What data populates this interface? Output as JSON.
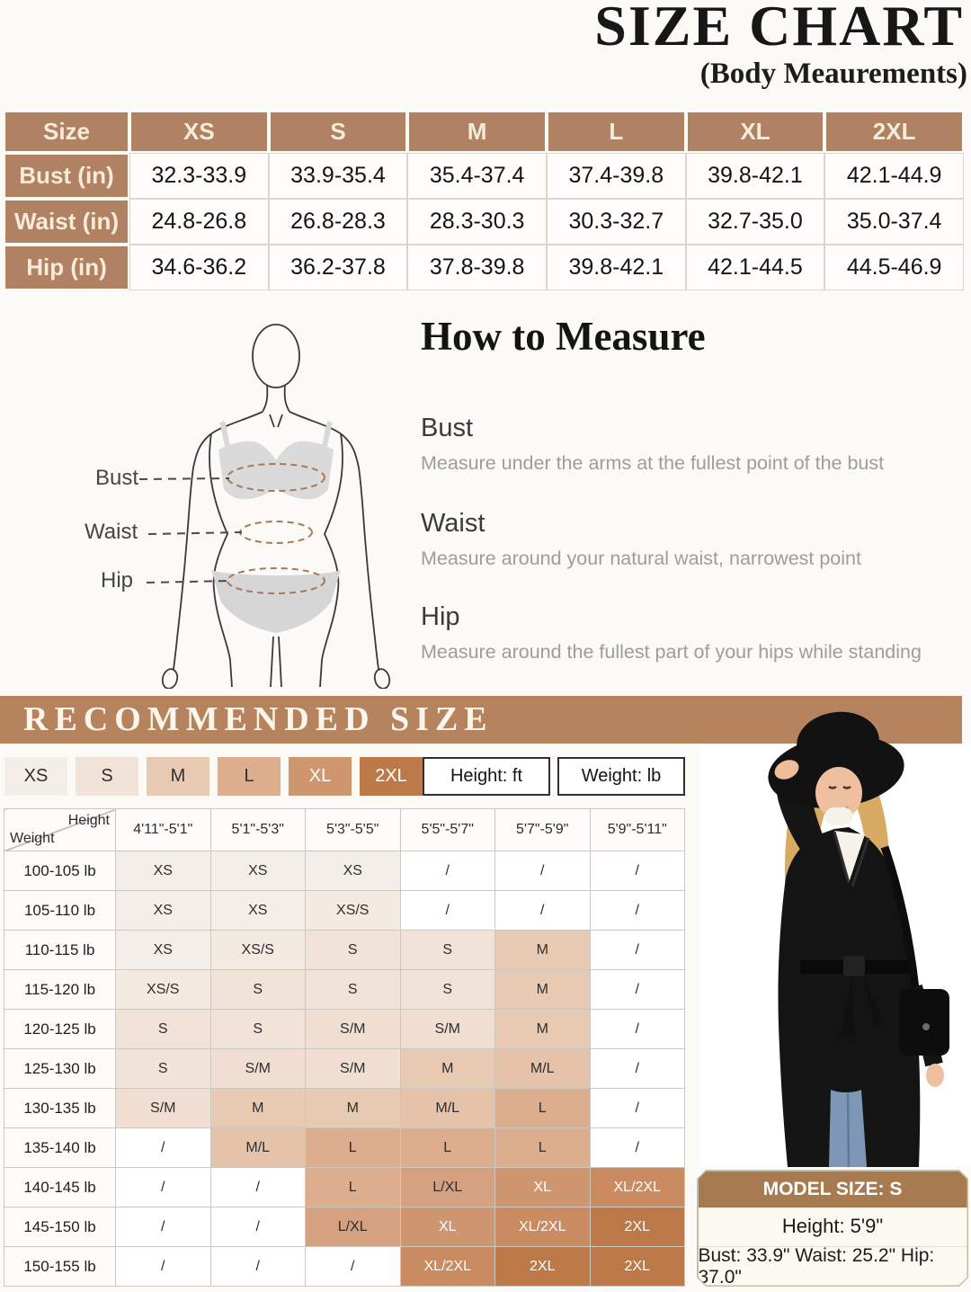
{
  "title": "SIZE CHART",
  "subtitle": "(Body Meaurements)",
  "size_chart": {
    "header": [
      "Size",
      "XS",
      "S",
      "M",
      "L",
      "XL",
      "2XL"
    ],
    "rows": [
      {
        "label": "Bust (in)",
        "values": [
          "32.3-33.9",
          "33.9-35.4",
          "35.4-37.4",
          "37.4-39.8",
          "39.8-42.1",
          "42.1-44.9"
        ]
      },
      {
        "label": "Waist (in)",
        "values": [
          "24.8-26.8",
          "26.8-28.3",
          "28.3-30.3",
          "30.3-32.7",
          "32.7-35.0",
          "35.0-37.4"
        ]
      },
      {
        "label": "Hip (in)",
        "values": [
          "34.6-36.2",
          "36.2-37.8",
          "37.8-39.8",
          "39.8-42.1",
          "42.1-44.5",
          "44.5-46.9"
        ]
      }
    ]
  },
  "how_to_measure": {
    "title": "How to Measure",
    "diagram_labels": {
      "bust": "Bust",
      "waist": "Waist",
      "hip": "Hip"
    },
    "items": [
      {
        "label": "Bust",
        "description": "Measure under the arms at the fullest point of the bust"
      },
      {
        "label": "Waist",
        "description": "Measure around your natural waist, narrowest point"
      },
      {
        "label": "Hip",
        "description": "Measure around the fullest part of your hips while standing"
      }
    ]
  },
  "recommended": {
    "banner": "RECOMMENDED SIZE",
    "legend": [
      "XS",
      "S",
      "M",
      "L",
      "XL",
      "2XL"
    ],
    "height_unit_label": "Height: ft",
    "weight_unit_label": "Weight: lb",
    "corner": {
      "top": "Height",
      "bottom": "Weight"
    },
    "height_columns": [
      "4'11\"-5'1\"",
      "5'1\"-5'3\"",
      "5'3\"-5'5\"",
      "5'5\"-5'7\"",
      "5'7\"-5'9\"",
      "5'9\"-5'11\""
    ],
    "rows": [
      {
        "weight": "100-105 lb",
        "sizes": [
          "XS",
          "XS",
          "XS",
          "/",
          "/",
          "/"
        ]
      },
      {
        "weight": "105-110 lb",
        "sizes": [
          "XS",
          "XS",
          "XS/S",
          "/",
          "/",
          "/"
        ]
      },
      {
        "weight": "110-115 lb",
        "sizes": [
          "XS",
          "XS/S",
          "S",
          "S",
          "M",
          "/"
        ]
      },
      {
        "weight": "115-120 lb",
        "sizes": [
          "XS/S",
          "S",
          "S",
          "S",
          "M",
          "/"
        ]
      },
      {
        "weight": "120-125 lb",
        "sizes": [
          "S",
          "S",
          "S/M",
          "S/M",
          "M",
          "/"
        ]
      },
      {
        "weight": "125-130 lb",
        "sizes": [
          "S",
          "S/M",
          "S/M",
          "M",
          "M/L",
          "/"
        ]
      },
      {
        "weight": "130-135 lb",
        "sizes": [
          "S/M",
          "M",
          "M",
          "M/L",
          "L",
          "/"
        ]
      },
      {
        "weight": "135-140 lb",
        "sizes": [
          "/",
          "M/L",
          "L",
          "L",
          "L",
          "/"
        ]
      },
      {
        "weight": "140-145 lb",
        "sizes": [
          "/",
          "/",
          "L",
          "L/XL",
          "XL",
          "XL/2XL"
        ]
      },
      {
        "weight": "145-150 lb",
        "sizes": [
          "/",
          "/",
          "L/XL",
          "XL",
          "XL/2XL",
          "2XL"
        ]
      },
      {
        "weight": "150-155 lb",
        "sizes": [
          "/",
          "/",
          "/",
          "XL/2XL",
          "2XL",
          "2XL"
        ]
      }
    ]
  },
  "model_info": {
    "header": "MODEL SIZE: S",
    "height": "Height: 5'9\"",
    "measurements": "Bust: 33.9\" Waist: 25.2\" Hip: 37.0\""
  },
  "colors": {
    "table_header_brown": "#b08162",
    "banner_brown": "#b5845e",
    "model_box_brown": "#a87a50",
    "size_shades": {
      "XS": "#f4eeea",
      "XS/S": "#f3eae2",
      "S": "#f2e3d9",
      "S/M": "#f0ded2",
      "M": "#e8c9b2",
      "M/L": "#e5c3ab",
      "L": "#dcae8e",
      "L/XL": "#d5a180",
      "XL": "#cf9770",
      "XL/2XL": "#c98b5f",
      "2XL": "#bd7a48",
      "/": "#ffffff"
    },
    "white_text_sizes": [
      "XL",
      "XL/2XL",
      "2XL"
    ]
  }
}
